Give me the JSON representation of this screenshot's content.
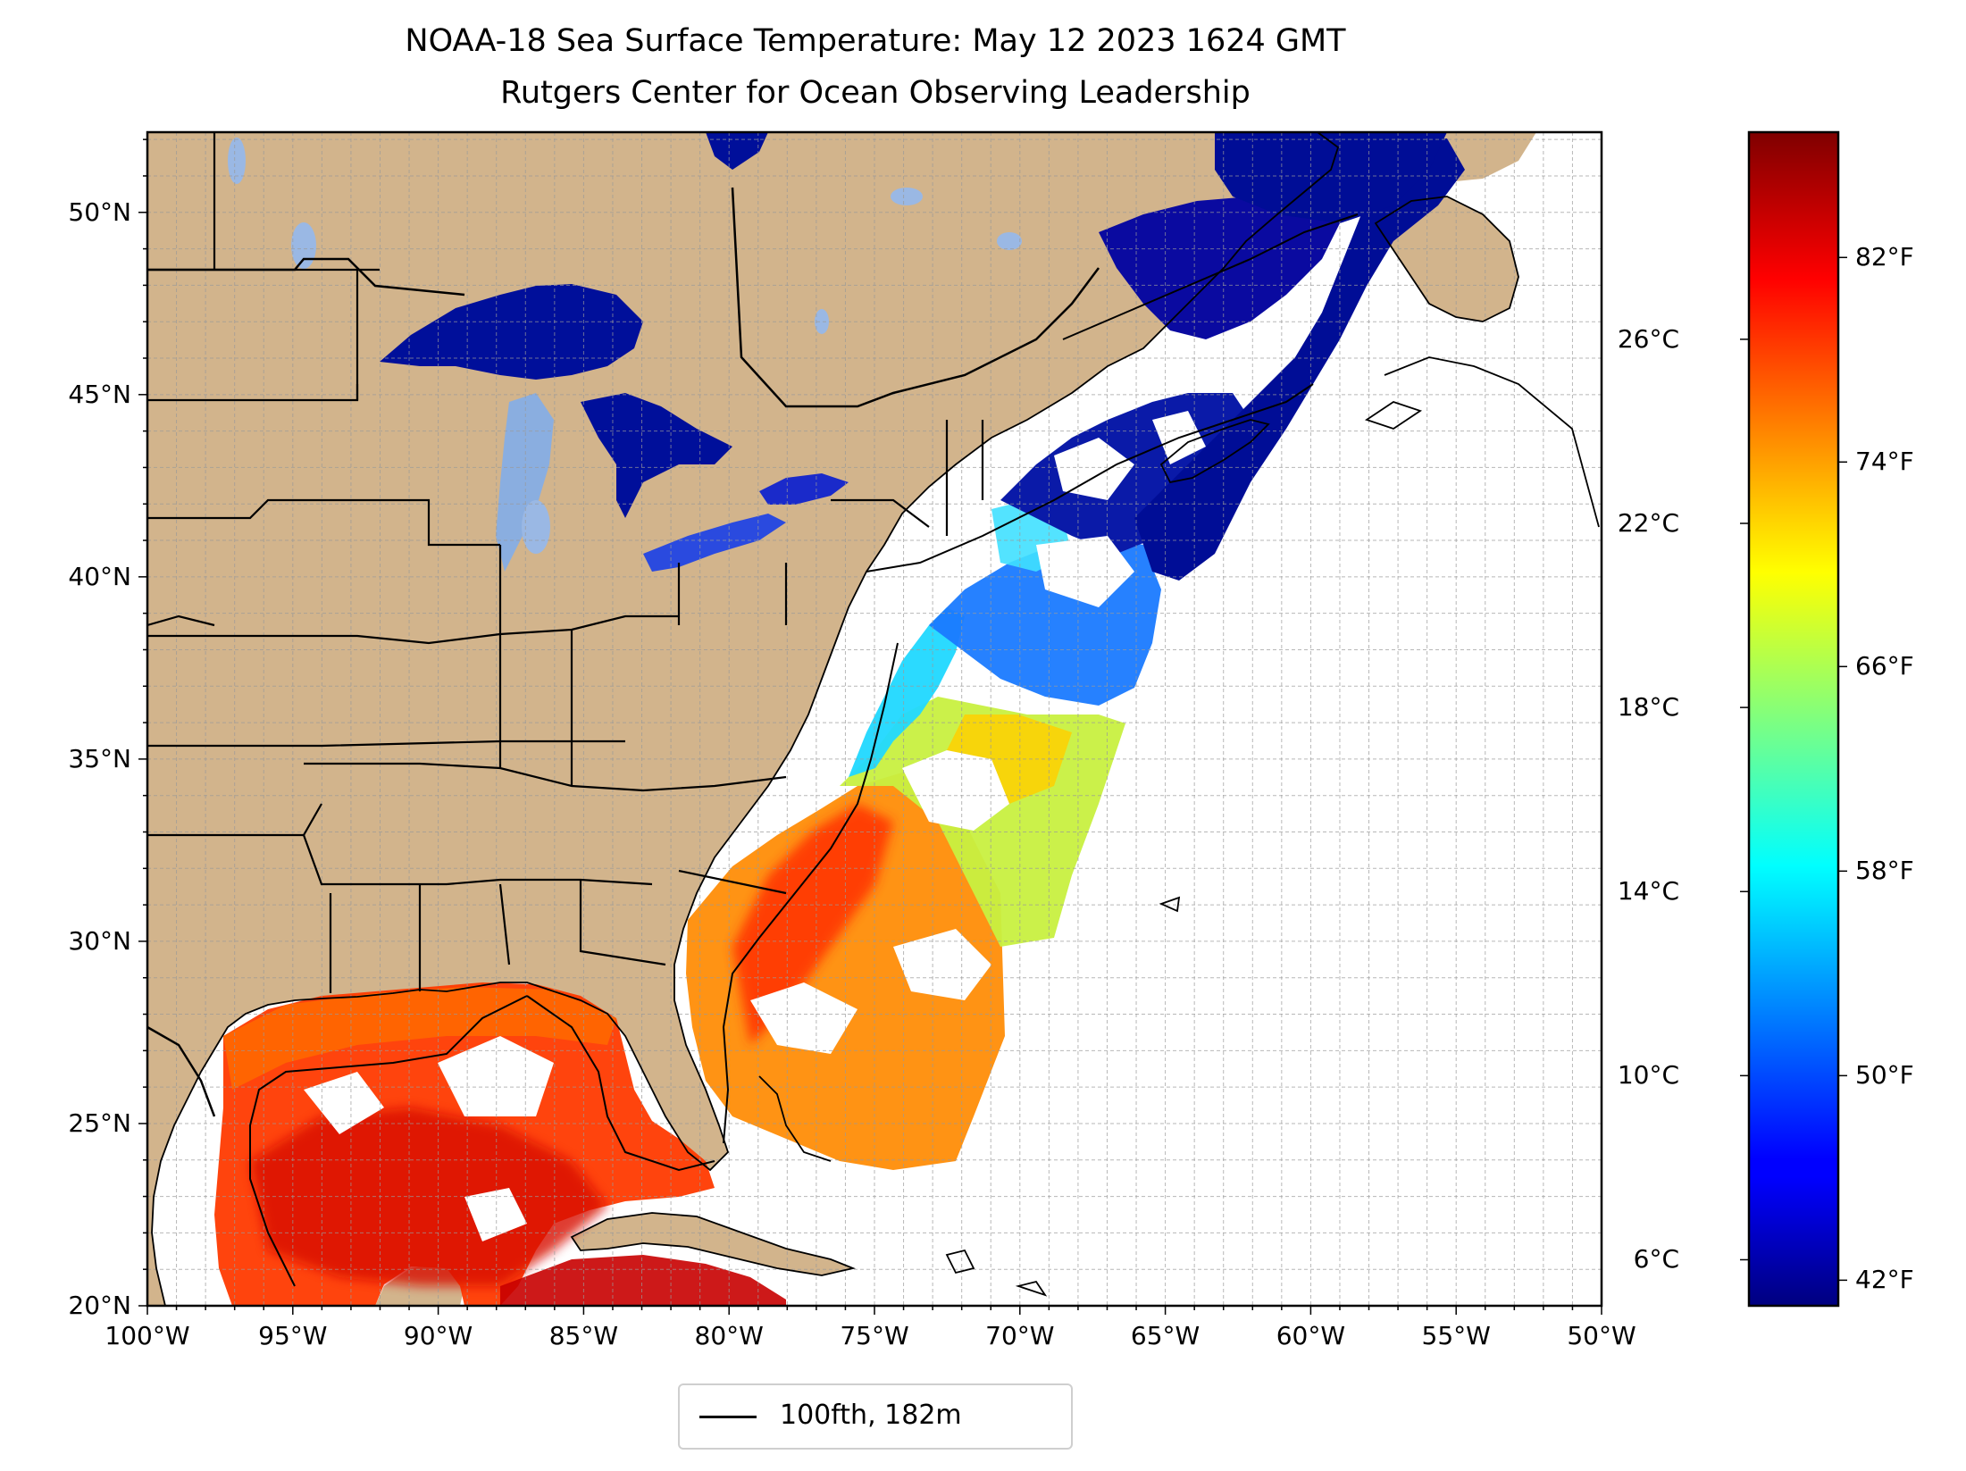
{
  "title": "NOAA-18 Sea Surface Temperature: May 12 2023 1624 GMT",
  "subtitle": "Rutgers Center for Ocean Observing Leadership",
  "map": {
    "extent": {
      "lon_min": -100,
      "lon_max": -50,
      "lat_min": 20,
      "lat_max": 52.2
    },
    "lat_ticks": [
      {
        "value": 50,
        "label": "50°N"
      },
      {
        "value": 45,
        "label": "45°N"
      },
      {
        "value": 40,
        "label": "40°N"
      },
      {
        "value": 35,
        "label": "35°N"
      },
      {
        "value": 30,
        "label": "30°N"
      },
      {
        "value": 25,
        "label": "25°N"
      },
      {
        "value": 20,
        "label": "20°N"
      }
    ],
    "lon_ticks": [
      {
        "value": -100,
        "label": "100°W"
      },
      {
        "value": -95,
        "label": "95°W"
      },
      {
        "value": -90,
        "label": "90°W"
      },
      {
        "value": -85,
        "label": "85°W"
      },
      {
        "value": -80,
        "label": "80°W"
      },
      {
        "value": -75,
        "label": "75°W"
      },
      {
        "value": -70,
        "label": "70°W"
      },
      {
        "value": -65,
        "label": "65°W"
      },
      {
        "value": -60,
        "label": "60°W"
      },
      {
        "value": -55,
        "label": "55°W"
      },
      {
        "value": -50,
        "label": "50°W"
      }
    ],
    "grid": true,
    "land_color": "#d2b48c",
    "lake_color": "#9ab8e4",
    "ocean_color": "#ffffff"
  },
  "colorbar": {
    "colormap": "jet",
    "celsius_range": [
      5,
      30.5
    ],
    "celsius_ticks": [
      {
        "value": 6,
        "label": "6°C"
      },
      {
        "value": 10,
        "label": "10°C"
      },
      {
        "value": 14,
        "label": "14°C"
      },
      {
        "value": 18,
        "label": "18°C"
      },
      {
        "value": 22,
        "label": "22°C"
      },
      {
        "value": 26,
        "label": "26°C"
      }
    ],
    "fahrenheit_ticks": [
      {
        "value": 42,
        "label": "42°F"
      },
      {
        "value": 50,
        "label": "50°F"
      },
      {
        "value": 58,
        "label": "58°F"
      },
      {
        "value": 66,
        "label": "66°F"
      },
      {
        "value": 74,
        "label": "74°F"
      },
      {
        "value": 82,
        "label": "82°F"
      }
    ]
  },
  "legend": {
    "label": "100fth, 182m",
    "line_color": "#000000"
  }
}
